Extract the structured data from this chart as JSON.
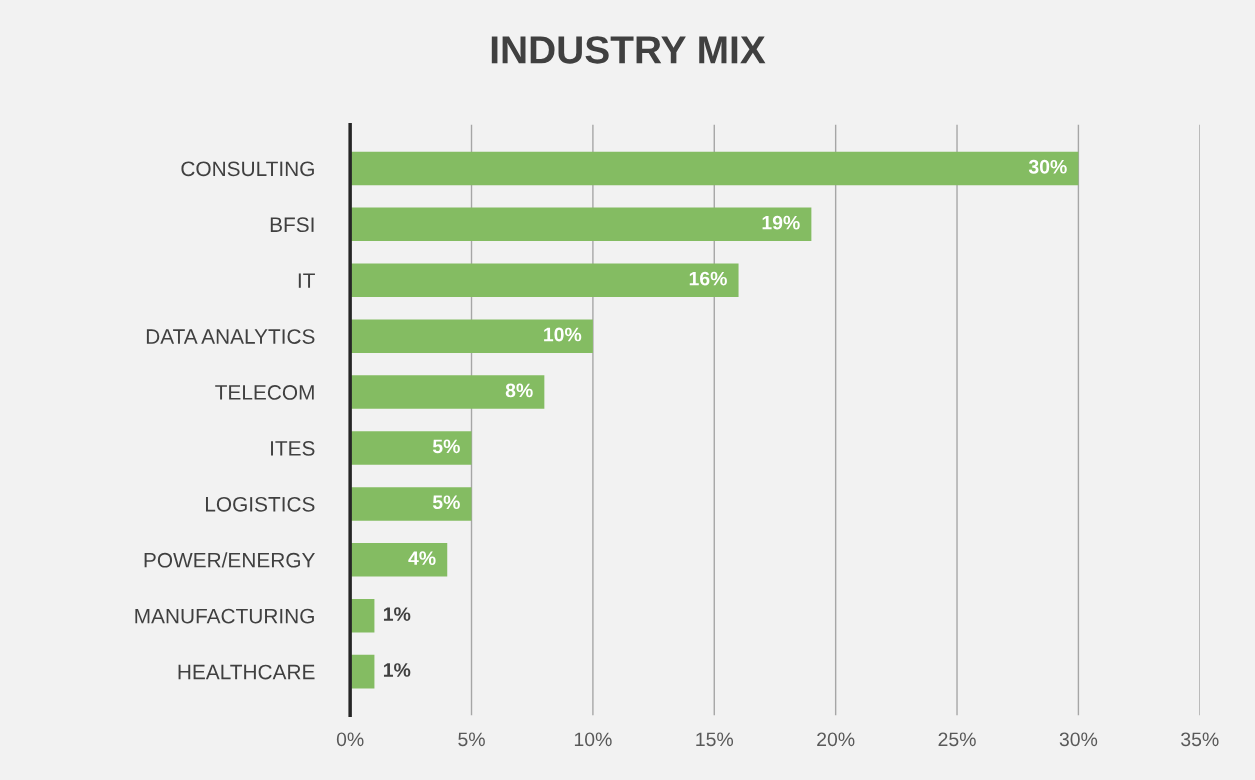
{
  "chart_data": {
    "type": "bar",
    "orientation": "horizontal",
    "title": "INDUSTRY MIX",
    "categories": [
      "CONSULTING",
      "BFSI",
      "IT",
      "DATA ANALYTICS",
      "TELECOM",
      "ITES",
      "LOGISTICS",
      "POWER/ENERGY",
      "MANUFACTURING",
      "HEALTHCARE"
    ],
    "values": [
      30,
      19,
      16,
      10,
      8,
      5,
      5,
      4,
      1,
      1
    ],
    "value_labels": [
      "30%",
      "19%",
      "16%",
      "10%",
      "8%",
      "5%",
      "5%",
      "4%",
      "1%",
      "1%"
    ],
    "color": "#84bc62",
    "xlim": [
      0,
      35
    ],
    "xticks": [
      {
        "value": 0,
        "label": "0%"
      },
      {
        "value": 5,
        "label": "5%"
      },
      {
        "value": 10,
        "label": "10%"
      },
      {
        "value": 15,
        "label": "15%"
      },
      {
        "value": 20,
        "label": "20%"
      },
      {
        "value": 25,
        "label": "25%"
      },
      {
        "value": 30,
        "label": "30%"
      },
      {
        "value": 35,
        "label": "35%"
      }
    ],
    "grid": "x",
    "legend": false
  }
}
